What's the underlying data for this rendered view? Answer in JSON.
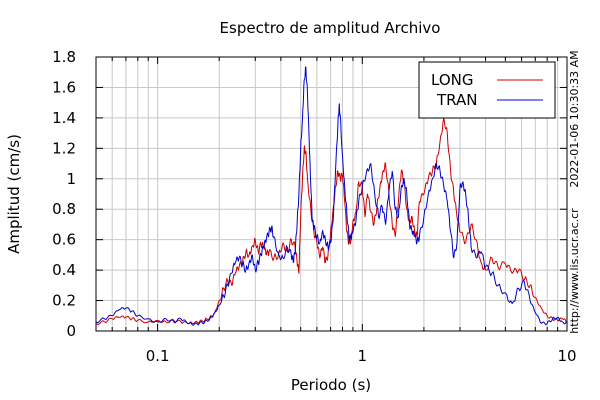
{
  "chart_data": {
    "type": "line",
    "title": "Espectro de amplitud Archivo",
    "xlabel": "Periodo (s)",
    "ylabel": "Amplitud (cm/s)",
    "xscale": "log",
    "xlim": [
      0.05,
      10
    ],
    "ylim": [
      0,
      1.8
    ],
    "x_ticks": [
      {
        "value": 0.1,
        "label": "0.1"
      },
      {
        "value": 1,
        "label": "1"
      },
      {
        "value": 10,
        "label": "10"
      }
    ],
    "y_ticks": [
      {
        "value": 0,
        "label": "0"
      },
      {
        "value": 0.2,
        "label": "0.2"
      },
      {
        "value": 0.4,
        "label": "0.4"
      },
      {
        "value": 0.6,
        "label": "0.6"
      },
      {
        "value": 0.8,
        "label": "0.8"
      },
      {
        "value": 1.0,
        "label": "1"
      },
      {
        "value": 1.2,
        "label": "1.2"
      },
      {
        "value": 1.4,
        "label": "1.4"
      },
      {
        "value": 1.6,
        "label": "1.6"
      },
      {
        "value": 1.8,
        "label": "1.8"
      }
    ],
    "grid": true,
    "legend_position": "top-right",
    "series": [
      {
        "name": "LONG",
        "color": "#cc0000",
        "points": [
          [
            0.05,
            0.05
          ],
          [
            0.055,
            0.06
          ],
          [
            0.06,
            0.08
          ],
          [
            0.065,
            0.09
          ],
          [
            0.07,
            0.09
          ],
          [
            0.075,
            0.08
          ],
          [
            0.08,
            0.07
          ],
          [
            0.09,
            0.06
          ],
          [
            0.1,
            0.07
          ],
          [
            0.11,
            0.06
          ],
          [
            0.12,
            0.07
          ],
          [
            0.13,
            0.06
          ],
          [
            0.14,
            0.05
          ],
          [
            0.15,
            0.05
          ],
          [
            0.16,
            0.06
          ],
          [
            0.17,
            0.07
          ],
          [
            0.18,
            0.09
          ],
          [
            0.19,
            0.12
          ],
          [
            0.2,
            0.2
          ],
          [
            0.21,
            0.28
          ],
          [
            0.22,
            0.33
          ],
          [
            0.23,
            0.3
          ],
          [
            0.24,
            0.38
          ],
          [
            0.25,
            0.42
          ],
          [
            0.26,
            0.45
          ],
          [
            0.27,
            0.52
          ],
          [
            0.28,
            0.5
          ],
          [
            0.29,
            0.56
          ],
          [
            0.3,
            0.6
          ],
          [
            0.31,
            0.52
          ],
          [
            0.32,
            0.57
          ],
          [
            0.33,
            0.55
          ],
          [
            0.34,
            0.5
          ],
          [
            0.35,
            0.52
          ],
          [
            0.37,
            0.48
          ],
          [
            0.39,
            0.5
          ],
          [
            0.41,
            0.58
          ],
          [
            0.43,
            0.52
          ],
          [
            0.45,
            0.6
          ],
          [
            0.47,
            0.55
          ],
          [
            0.48,
            0.45
          ],
          [
            0.49,
            0.38
          ],
          [
            0.5,
            0.75
          ],
          [
            0.51,
            1.0
          ],
          [
            0.52,
            1.2
          ],
          [
            0.53,
            1.18
          ],
          [
            0.54,
            1.0
          ],
          [
            0.56,
            0.8
          ],
          [
            0.58,
            0.65
          ],
          [
            0.6,
            0.58
          ],
          [
            0.62,
            0.48
          ],
          [
            0.64,
            0.55
          ],
          [
            0.66,
            0.45
          ],
          [
            0.68,
            0.5
          ],
          [
            0.7,
            0.65
          ],
          [
            0.72,
            0.8
          ],
          [
            0.74,
            0.95
          ],
          [
            0.76,
            1.05
          ],
          [
            0.78,
            1.0
          ],
          [
            0.8,
            1.02
          ],
          [
            0.82,
            0.85
          ],
          [
            0.84,
            0.65
          ],
          [
            0.86,
            0.58
          ],
          [
            0.88,
            0.6
          ],
          [
            0.9,
            0.72
          ],
          [
            0.93,
            0.78
          ],
          [
            0.96,
            0.98
          ],
          [
            1.0,
            0.95
          ],
          [
            1.03,
            0.75
          ],
          [
            1.06,
            0.9
          ],
          [
            1.1,
            0.78
          ],
          [
            1.14,
            0.7
          ],
          [
            1.18,
            0.82
          ],
          [
            1.22,
            0.95
          ],
          [
            1.26,
            1.05
          ],
          [
            1.3,
            1.1
          ],
          [
            1.35,
            0.9
          ],
          [
            1.4,
            0.7
          ],
          [
            1.45,
            0.62
          ],
          [
            1.5,
            0.85
          ],
          [
            1.55,
            1.05
          ],
          [
            1.6,
            0.98
          ],
          [
            1.65,
            0.8
          ],
          [
            1.7,
            0.72
          ],
          [
            1.75,
            0.75
          ],
          [
            1.8,
            0.65
          ],
          [
            1.85,
            0.62
          ],
          [
            1.9,
            0.85
          ],
          [
            2.0,
            0.9
          ],
          [
            2.1,
            1.0
          ],
          [
            2.2,
            1.05
          ],
          [
            2.3,
            1.1
          ],
          [
            2.4,
            1.25
          ],
          [
            2.5,
            1.4
          ],
          [
            2.6,
            1.3
          ],
          [
            2.7,
            1.05
          ],
          [
            2.8,
            0.9
          ],
          [
            2.9,
            0.75
          ],
          [
            3.0,
            0.65
          ],
          [
            3.2,
            0.58
          ],
          [
            3.4,
            0.7
          ],
          [
            3.6,
            0.6
          ],
          [
            3.8,
            0.45
          ],
          [
            4.0,
            0.4
          ],
          [
            4.3,
            0.48
          ],
          [
            4.6,
            0.42
          ],
          [
            5.0,
            0.44
          ],
          [
            5.4,
            0.38
          ],
          [
            5.8,
            0.4
          ],
          [
            6.2,
            0.34
          ],
          [
            6.6,
            0.3
          ],
          [
            7.0,
            0.22
          ],
          [
            7.5,
            0.15
          ],
          [
            8.0,
            0.1
          ],
          [
            8.5,
            0.08
          ],
          [
            9.0,
            0.07
          ],
          [
            9.5,
            0.08
          ],
          [
            10.0,
            0.06
          ]
        ]
      },
      {
        "name": "TRAN",
        "color": "#0000cc",
        "points": [
          [
            0.05,
            0.06
          ],
          [
            0.055,
            0.08
          ],
          [
            0.06,
            0.1
          ],
          [
            0.065,
            0.14
          ],
          [
            0.07,
            0.15
          ],
          [
            0.075,
            0.13
          ],
          [
            0.08,
            0.1
          ],
          [
            0.09,
            0.08
          ],
          [
            0.1,
            0.06
          ],
          [
            0.11,
            0.08
          ],
          [
            0.12,
            0.06
          ],
          [
            0.13,
            0.08
          ],
          [
            0.14,
            0.05
          ],
          [
            0.15,
            0.04
          ],
          [
            0.16,
            0.05
          ],
          [
            0.17,
            0.06
          ],
          [
            0.18,
            0.08
          ],
          [
            0.19,
            0.12
          ],
          [
            0.2,
            0.17
          ],
          [
            0.21,
            0.23
          ],
          [
            0.22,
            0.3
          ],
          [
            0.23,
            0.38
          ],
          [
            0.24,
            0.45
          ],
          [
            0.25,
            0.48
          ],
          [
            0.26,
            0.44
          ],
          [
            0.27,
            0.4
          ],
          [
            0.28,
            0.45
          ],
          [
            0.29,
            0.5
          ],
          [
            0.3,
            0.4
          ],
          [
            0.31,
            0.45
          ],
          [
            0.32,
            0.5
          ],
          [
            0.33,
            0.55
          ],
          [
            0.34,
            0.6
          ],
          [
            0.35,
            0.65
          ],
          [
            0.36,
            0.68
          ],
          [
            0.37,
            0.62
          ],
          [
            0.39,
            0.5
          ],
          [
            0.41,
            0.48
          ],
          [
            0.43,
            0.55
          ],
          [
            0.45,
            0.5
          ],
          [
            0.46,
            0.45
          ],
          [
            0.47,
            0.52
          ],
          [
            0.48,
            0.7
          ],
          [
            0.49,
            0.9
          ],
          [
            0.5,
            1.2
          ],
          [
            0.51,
            1.4
          ],
          [
            0.52,
            1.65
          ],
          [
            0.53,
            1.73
          ],
          [
            0.54,
            1.55
          ],
          [
            0.55,
            1.25
          ],
          [
            0.56,
            0.95
          ],
          [
            0.57,
            0.72
          ],
          [
            0.58,
            0.68
          ],
          [
            0.6,
            0.62
          ],
          [
            0.62,
            0.58
          ],
          [
            0.64,
            0.66
          ],
          [
            0.66,
            0.6
          ],
          [
            0.68,
            0.55
          ],
          [
            0.7,
            0.58
          ],
          [
            0.72,
            0.72
          ],
          [
            0.74,
            1.05
          ],
          [
            0.76,
            1.35
          ],
          [
            0.77,
            1.48
          ],
          [
            0.78,
            1.42
          ],
          [
            0.8,
            1.15
          ],
          [
            0.82,
            0.95
          ],
          [
            0.84,
            0.78
          ],
          [
            0.86,
            0.62
          ],
          [
            0.88,
            0.6
          ],
          [
            0.9,
            0.65
          ],
          [
            0.93,
            0.72
          ],
          [
            0.96,
            0.85
          ],
          [
            1.0,
            0.95
          ],
          [
            1.05,
            1.05
          ],
          [
            1.1,
            1.1
          ],
          [
            1.15,
            0.9
          ],
          [
            1.2,
            0.75
          ],
          [
            1.25,
            0.82
          ],
          [
            1.3,
            0.7
          ],
          [
            1.35,
            0.92
          ],
          [
            1.4,
            1.05
          ],
          [
            1.45,
            0.8
          ],
          [
            1.5,
            0.75
          ],
          [
            1.55,
            0.95
          ],
          [
            1.6,
            1.0
          ],
          [
            1.65,
            0.9
          ],
          [
            1.7,
            0.7
          ],
          [
            1.75,
            0.65
          ],
          [
            1.8,
            0.62
          ],
          [
            1.85,
            0.58
          ],
          [
            1.9,
            0.62
          ],
          [
            2.0,
            0.75
          ],
          [
            2.1,
            0.9
          ],
          [
            2.2,
            1.0
          ],
          [
            2.3,
            1.1
          ],
          [
            2.4,
            1.05
          ],
          [
            2.5,
            0.95
          ],
          [
            2.6,
            0.85
          ],
          [
            2.7,
            0.65
          ],
          [
            2.8,
            0.48
          ],
          [
            2.9,
            0.58
          ],
          [
            3.0,
            0.95
          ],
          [
            3.1,
            0.98
          ],
          [
            3.2,
            0.9
          ],
          [
            3.3,
            0.75
          ],
          [
            3.4,
            0.55
          ],
          [
            3.6,
            0.48
          ],
          [
            3.8,
            0.52
          ],
          [
            4.0,
            0.42
          ],
          [
            4.3,
            0.38
          ],
          [
            4.6,
            0.3
          ],
          [
            5.0,
            0.25
          ],
          [
            5.4,
            0.18
          ],
          [
            5.8,
            0.28
          ],
          [
            6.2,
            0.32
          ],
          [
            6.6,
            0.2
          ],
          [
            7.0,
            0.12
          ],
          [
            7.5,
            0.05
          ],
          [
            8.0,
            0.05
          ],
          [
            8.5,
            0.08
          ],
          [
            9.0,
            0.09
          ],
          [
            9.5,
            0.06
          ],
          [
            10.0,
            0.05
          ]
        ]
      }
    ],
    "side_annotations": [
      "2022-01-06 10:30:33 AM",
      "http://www.lis.ucr.ac.cr"
    ]
  }
}
